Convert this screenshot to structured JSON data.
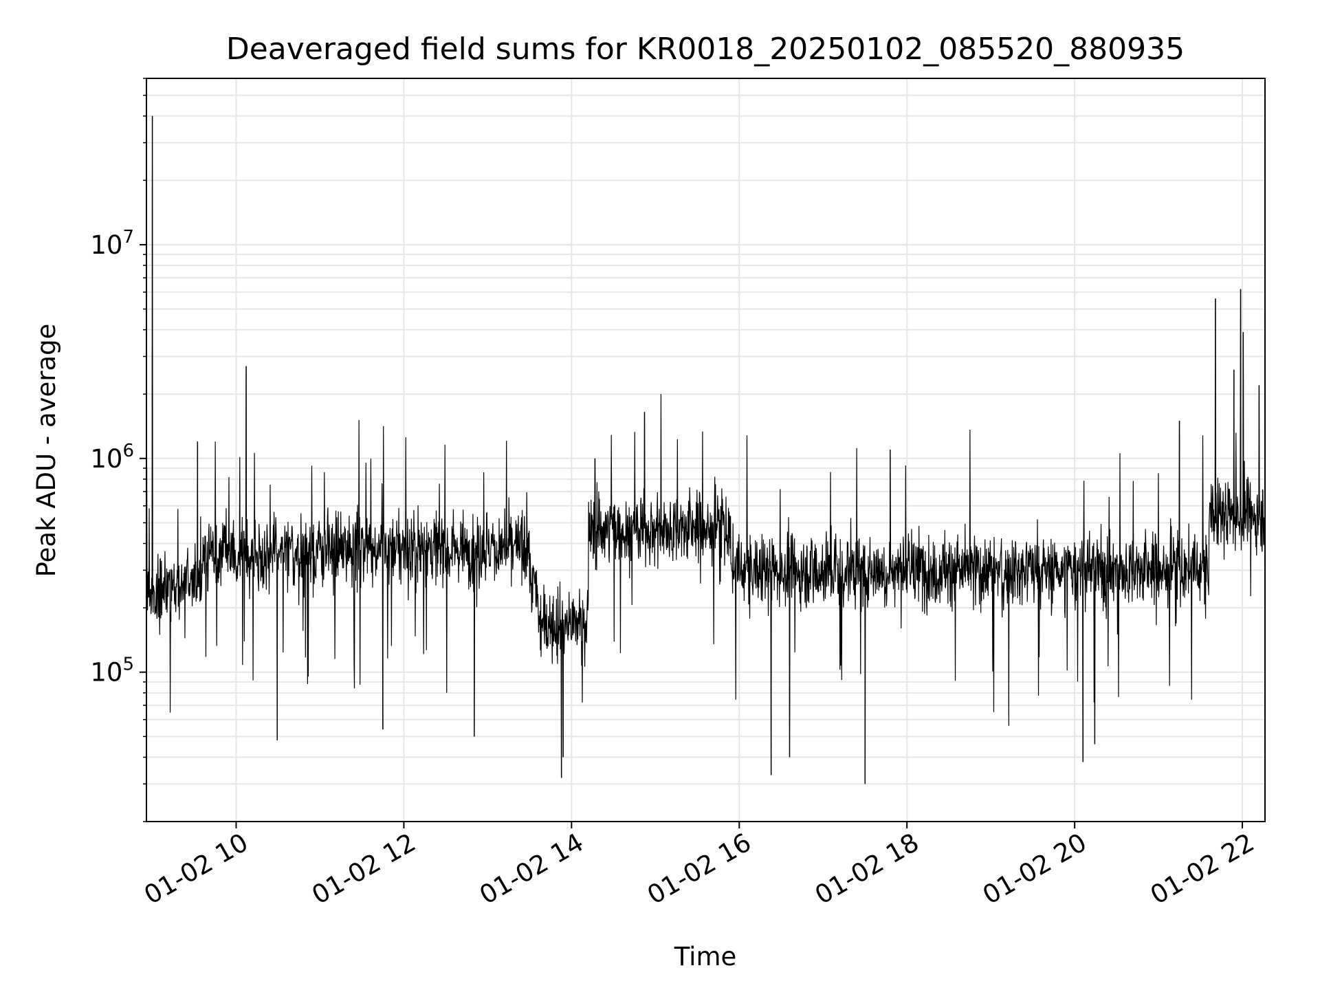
{
  "chart_data": {
    "type": "line",
    "title": "Deaveraged field sums for KR0018_20250102_085520_880935",
    "xlabel": "Time",
    "ylabel": "Peak ADU - average",
    "yscale": "log",
    "ylim": [
      20000,
      60000000
    ],
    "xlim_hours": [
      8.93,
      22.27
    ],
    "grid": true,
    "line_color": "#000000",
    "grid_color": "#e6e6e6",
    "x_ticks": [
      {
        "hour": 10,
        "label": "01-02 10"
      },
      {
        "hour": 12,
        "label": "01-02 12"
      },
      {
        "hour": 14,
        "label": "01-02 14"
      },
      {
        "hour": 16,
        "label": "01-02 16"
      },
      {
        "hour": 18,
        "label": "01-02 18"
      },
      {
        "hour": 20,
        "label": "01-02 20"
      },
      {
        "hour": 22,
        "label": "01-02 22"
      }
    ],
    "y_ticks": [
      {
        "value": 100000,
        "base": "10",
        "exp": "5"
      },
      {
        "value": 1000000,
        "base": "10",
        "exp": "6"
      },
      {
        "value": 10000000,
        "base": "10",
        "exp": "7"
      }
    ],
    "segments": [
      {
        "start": 8.93,
        "end": 9.6,
        "median": 250000
      },
      {
        "start": 9.6,
        "end": 11.3,
        "median": 360000
      },
      {
        "start": 11.3,
        "end": 13.5,
        "median": 380000
      },
      {
        "start": 13.5,
        "end": 13.6,
        "median": 250000
      },
      {
        "start": 13.6,
        "end": 14.2,
        "median": 170000
      },
      {
        "start": 14.2,
        "end": 15.9,
        "median": 470000
      },
      {
        "start": 15.9,
        "end": 21.6,
        "median": 300000
      },
      {
        "start": 21.6,
        "end": 22.27,
        "median": 550000
      }
    ],
    "spikes": [
      {
        "hour": 9.0,
        "value": 40000000
      },
      {
        "hour": 9.54,
        "value": 1200000
      },
      {
        "hour": 10.12,
        "value": 2700000
      },
      {
        "hour": 14.28,
        "value": 1000000
      },
      {
        "hour": 14.87,
        "value": 1650000
      },
      {
        "hour": 17.8,
        "value": 1100000
      },
      {
        "hour": 21.25,
        "value": 1500000
      },
      {
        "hour": 21.68,
        "value": 5600000
      },
      {
        "hour": 21.98,
        "value": 6200000
      },
      {
        "hour": 22.01,
        "value": 3900000
      },
      {
        "hour": 21.9,
        "value": 2600000
      },
      {
        "hour": 22.2,
        "value": 2200000
      }
    ],
    "dips": [
      {
        "hour": 10.49,
        "value": 48000
      },
      {
        "hour": 11.75,
        "value": 54000
      },
      {
        "hour": 12.84,
        "value": 50000
      },
      {
        "hour": 13.88,
        "value": 32000
      },
      {
        "hour": 13.9,
        "value": 40000
      },
      {
        "hour": 16.38,
        "value": 33000
      },
      {
        "hour": 16.6,
        "value": 40000
      },
      {
        "hour": 17.5,
        "value": 30000
      },
      {
        "hour": 20.1,
        "value": 38000
      },
      {
        "hour": 20.24,
        "value": 46000
      }
    ]
  }
}
